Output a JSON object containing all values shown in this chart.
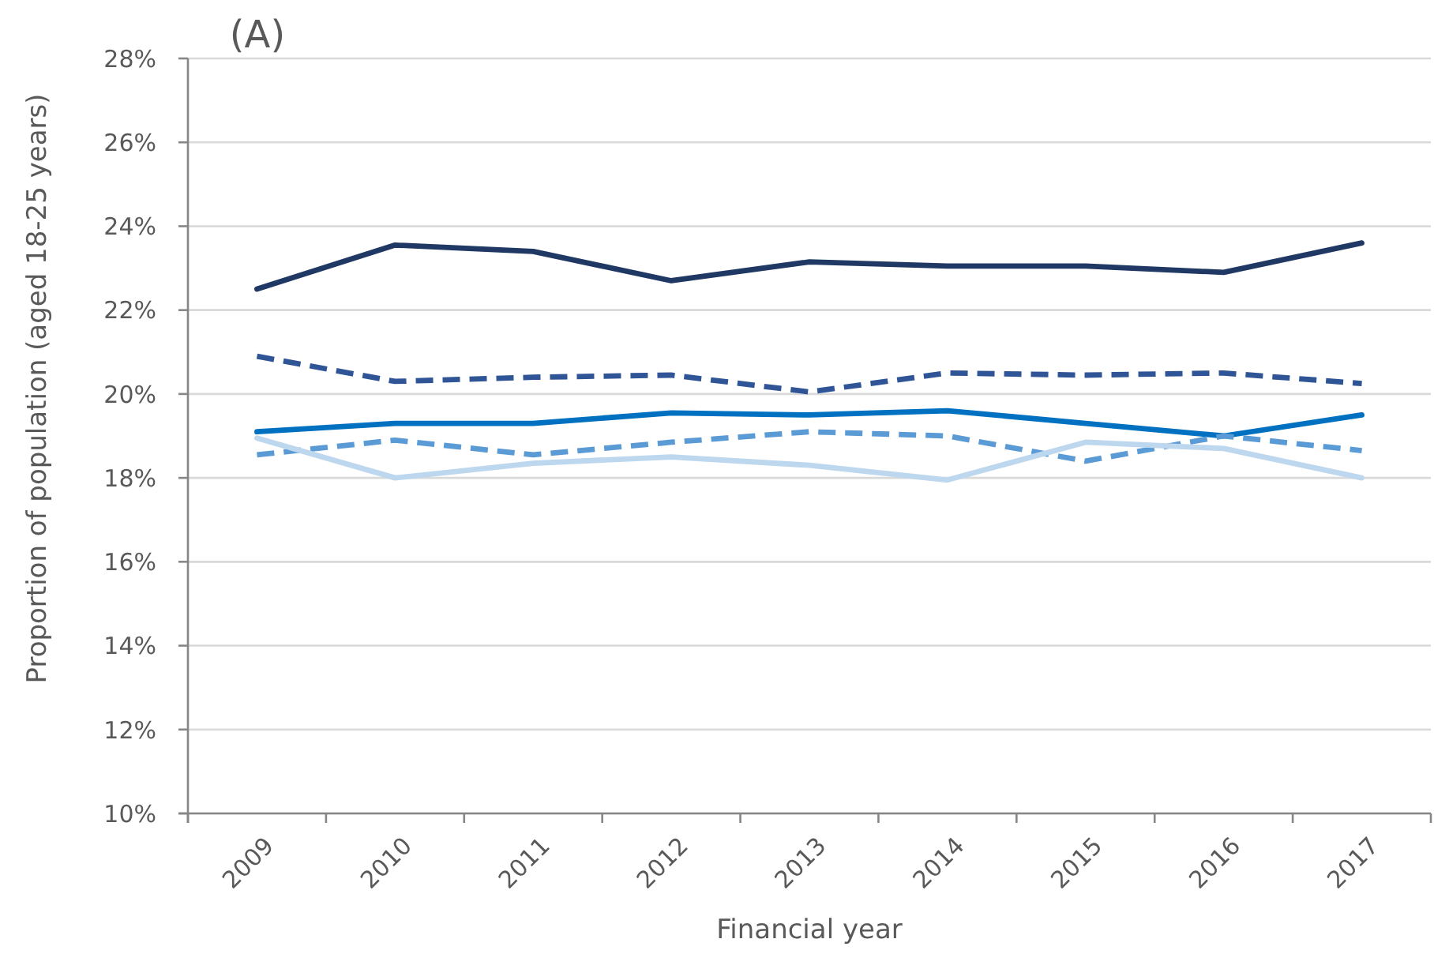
{
  "chart_data": {
    "type": "line",
    "title": "(A)",
    "xlabel": "Financial year",
    "ylabel": "Proportion of population (aged 18-25 years)",
    "categories": [
      "2009",
      "2010",
      "2011",
      "2012",
      "2013",
      "2014",
      "2015",
      "2016",
      "2017"
    ],
    "series": [
      {
        "color": "#203864",
        "line_style": "solid",
        "values": [
          22.5,
          23.55,
          23.4,
          22.7,
          23.15,
          23.05,
          23.05,
          22.9,
          23.6
        ]
      },
      {
        "color": "#2f5597",
        "line_style": "dashed",
        "values": [
          20.9,
          20.3,
          20.4,
          20.45,
          20.05,
          20.5,
          20.45,
          20.5,
          20.25
        ]
      },
      {
        "color": "#0070c0",
        "line_style": "solid",
        "values": [
          19.1,
          19.3,
          19.3,
          19.55,
          19.5,
          19.6,
          19.3,
          19.0,
          19.5
        ]
      },
      {
        "color": "#5b9bd5",
        "line_style": "dashed",
        "values": [
          18.55,
          18.9,
          18.55,
          18.85,
          19.1,
          19.0,
          18.4,
          19.0,
          18.65
        ]
      },
      {
        "color": "#bdd7ee",
        "line_style": "solid",
        "values": [
          18.95,
          18.0,
          18.35,
          18.5,
          18.3,
          17.95,
          18.85,
          18.7,
          18.0
        ]
      }
    ],
    "ylim": [
      10,
      28
    ],
    "yticks": [
      {
        "value": 10,
        "label": "10%"
      },
      {
        "value": 12,
        "label": "12%"
      },
      {
        "value": 14,
        "label": "14%"
      },
      {
        "value": 16,
        "label": "16%"
      },
      {
        "value": 18,
        "label": "18%"
      },
      {
        "value": 20,
        "label": "20%"
      },
      {
        "value": 22,
        "label": "22%"
      },
      {
        "value": 24,
        "label": "24%"
      },
      {
        "value": 26,
        "label": "26%"
      },
      {
        "value": 28,
        "label": "28%"
      }
    ],
    "grid": "y"
  }
}
